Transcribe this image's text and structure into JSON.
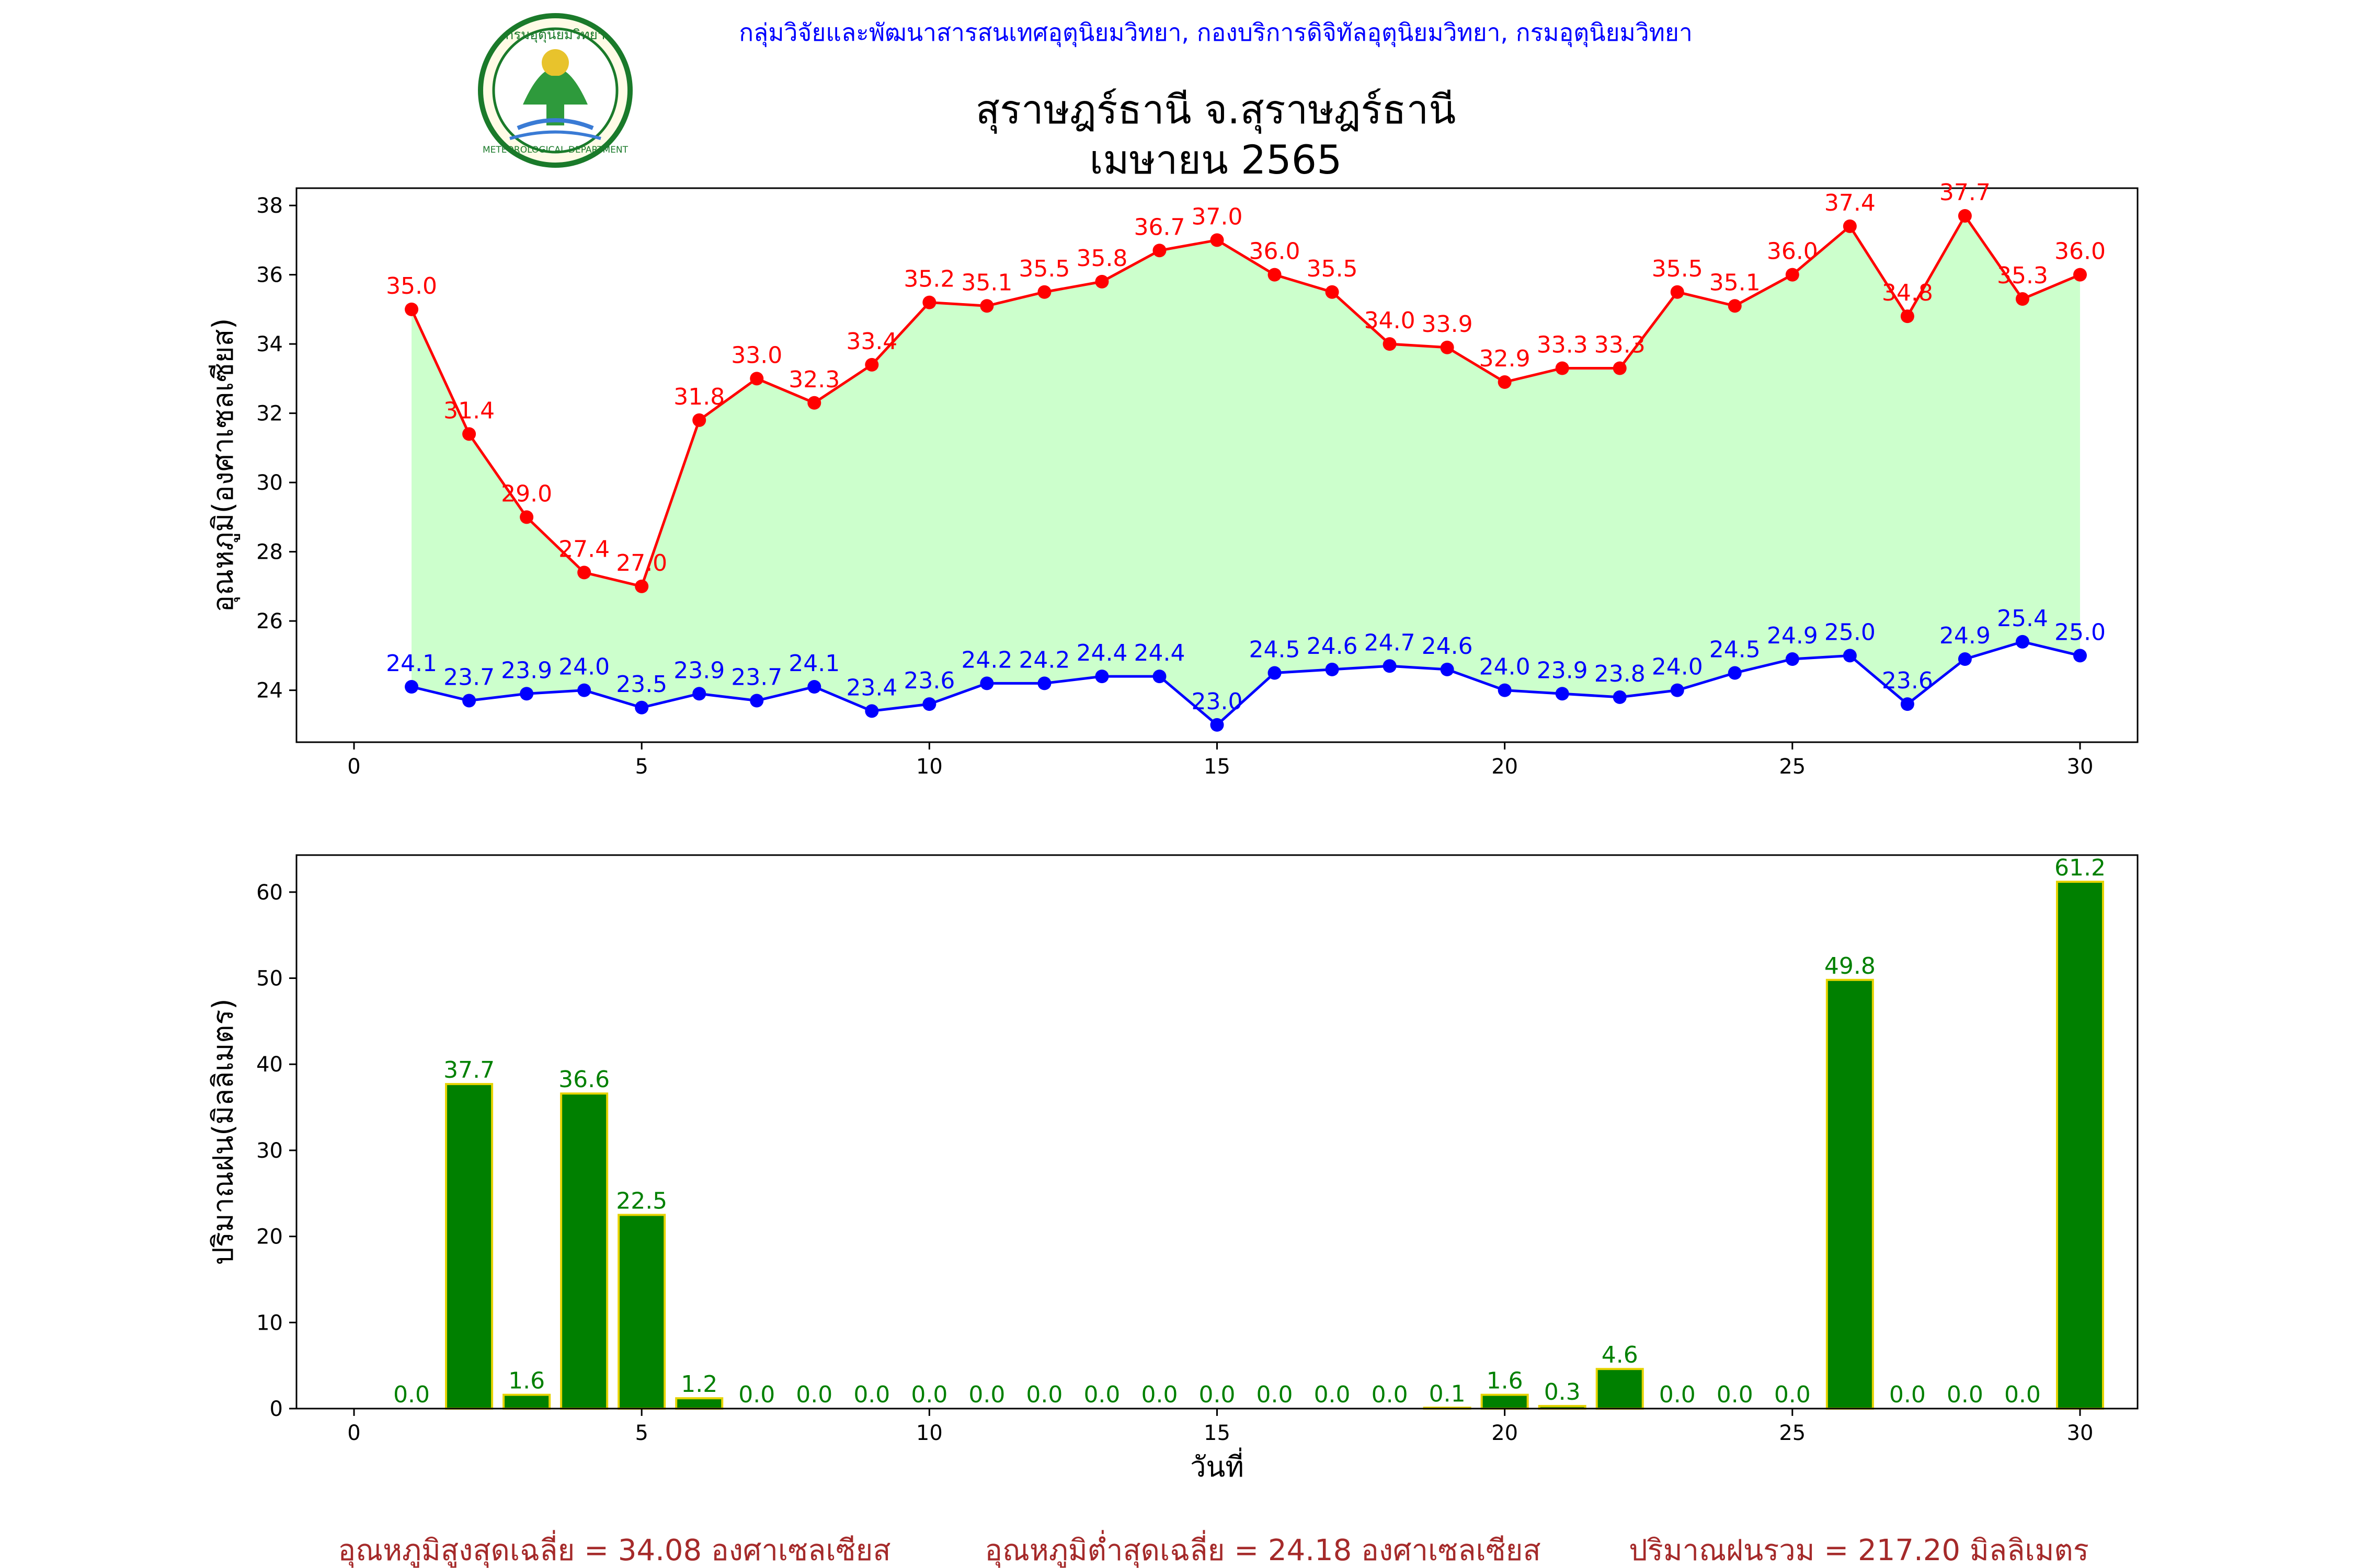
{
  "header": {
    "organization": "กลุ่มวิจัยและพัฒนาสารสนเทศอุตุนิยมวิทยา, กองบริการดิจิทัลอุตุนิยมวิทยา, กรมอุตุนิยมวิทยา",
    "title_line1": "สุราษฎร์ธานี จ.สุราษฎร์ธานี",
    "title_line2": "เมษายน 2565",
    "logo_text_top": "กรมอุตุนิยมวิทยา",
    "logo_text_bottom": "METEOROLOGICAL DEPARTMENT"
  },
  "summary": {
    "avg_max": "อุณหภูมิสูงสุดเฉลี่ย = 34.08 องศาเซลเซียส",
    "avg_min": "อุณหภูมิต่ำสุดเฉลี่ย = 24.18 องศาเซลเซียส",
    "total_rain": "ปริมาณฝนรวม = 217.20 มิลลิเมตร"
  },
  "colors": {
    "max_temp": "#ff0000",
    "min_temp": "#0000ff",
    "fill": "#ccffcc",
    "rain_bar": "#008000",
    "rain_edge": "#e6d300",
    "rain_label": "#008000",
    "header_text": "#0000ff",
    "summary_text": "#a52a2a"
  },
  "chart_data": [
    {
      "type": "line",
      "ylabel": "อุณหภูมิ(องศาเซลเซียส)",
      "xlim": [
        -1,
        31
      ],
      "ylim": [
        22.5,
        38.5
      ],
      "xticks": [
        0,
        5,
        10,
        15,
        20,
        25,
        30
      ],
      "yticks": [
        24,
        26,
        28,
        30,
        32,
        34,
        36,
        38
      ],
      "x": [
        1,
        2,
        3,
        4,
        5,
        6,
        7,
        8,
        9,
        10,
        11,
        12,
        13,
        14,
        15,
        16,
        17,
        18,
        19,
        20,
        21,
        22,
        23,
        24,
        25,
        26,
        27,
        28,
        29,
        30
      ],
      "series": [
        {
          "values": [
            35.0,
            31.4,
            29.0,
            27.4,
            27.0,
            31.8,
            33.0,
            32.3,
            33.4,
            35.2,
            35.1,
            35.5,
            35.8,
            36.7,
            37.0,
            36.0,
            35.5,
            34.0,
            33.9,
            32.9,
            33.3,
            33.3,
            35.5,
            35.1,
            36.0,
            37.4,
            34.8,
            37.7,
            35.3,
            36.0
          ]
        },
        {
          "values": [
            24.1,
            23.7,
            23.9,
            24.0,
            23.5,
            23.9,
            23.7,
            24.1,
            23.4,
            23.6,
            24.2,
            24.2,
            24.4,
            24.4,
            23.0,
            24.5,
            24.6,
            24.7,
            24.6,
            24.0,
            23.9,
            23.8,
            24.0,
            24.5,
            24.9,
            25.0,
            23.6,
            24.9,
            25.4,
            25.0
          ]
        }
      ]
    },
    {
      "type": "bar",
      "xlabel": "วันที่",
      "ylabel": "ปริมาณฝน(มิลลิเมตร)",
      "xlim": [
        -1,
        31
      ],
      "ylim": [
        0,
        64.3
      ],
      "xticks": [
        0,
        5,
        10,
        15,
        20,
        25,
        30
      ],
      "yticks": [
        0,
        10,
        20,
        30,
        40,
        50,
        60
      ],
      "x": [
        1,
        2,
        3,
        4,
        5,
        6,
        7,
        8,
        9,
        10,
        11,
        12,
        13,
        14,
        15,
        16,
        17,
        18,
        19,
        20,
        21,
        22,
        23,
        24,
        25,
        26,
        27,
        28,
        29,
        30
      ],
      "values": [
        0.0,
        37.7,
        1.6,
        36.6,
        22.5,
        1.2,
        0.0,
        0.0,
        0.0,
        0.0,
        0.0,
        0.0,
        0.0,
        0.0,
        0.0,
        0.0,
        0.0,
        0.0,
        0.1,
        1.6,
        0.3,
        4.6,
        0.0,
        0.0,
        0.0,
        49.8,
        0.0,
        0.0,
        0.0,
        61.2
      ]
    }
  ]
}
